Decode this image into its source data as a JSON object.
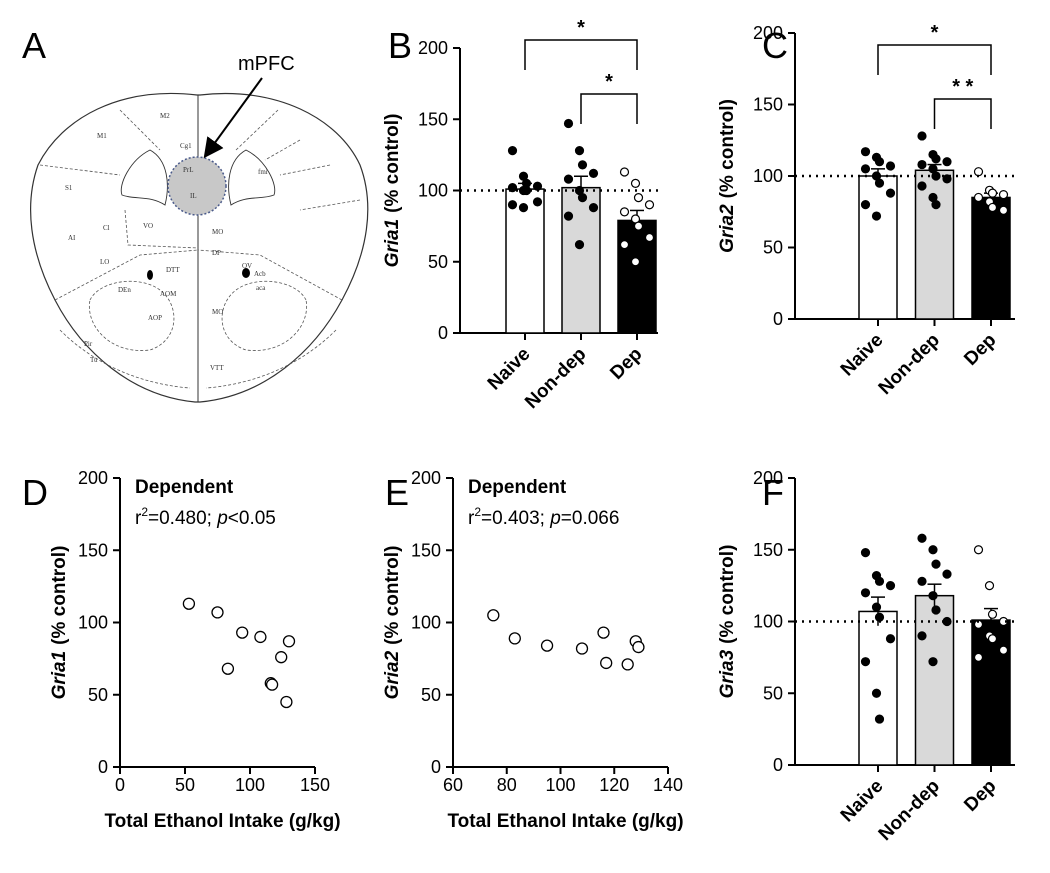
{
  "diagram": {
    "panel": "A",
    "label": "mPFC",
    "regions": [
      "M1",
      "M2",
      "Cg1",
      "PrL",
      "IL",
      "fmi",
      "S1",
      "Cl",
      "VO",
      "MO",
      "DP",
      "AI",
      "LO",
      "DTT",
      "OV",
      "AOM",
      "DEn",
      "Acb",
      "aca",
      "AOP",
      "Pir",
      "Tu",
      "VTT",
      "MO"
    ]
  },
  "chart_data": [
    {
      "panel": "B",
      "type": "bar",
      "ylabel_gene": "Gria1",
      "ylabel_unit": "(% control)",
      "categories": [
        "Naive",
        "Non-dep",
        "Dep"
      ],
      "values": [
        101,
        102,
        79
      ],
      "errors": [
        4,
        8,
        7
      ],
      "points": [
        [
          128,
          110,
          105,
          103,
          102,
          100,
          100,
          92,
          90,
          88
        ],
        [
          147,
          128,
          118,
          112,
          108,
          100,
          95,
          88,
          82,
          62
        ],
        [
          113,
          105,
          95,
          90,
          85,
          80,
          75,
          67,
          62,
          50
        ]
      ],
      "bar_colors": [
        "#ffffff",
        "#d9d9d9",
        "#000000"
      ],
      "point_colors": [
        "#000000",
        "#000000",
        "#ffffff"
      ],
      "ylim": [
        0,
        200
      ],
      "yticks": [
        0,
        50,
        100,
        150,
        200
      ],
      "reference_line": 100,
      "comparisons": [
        {
          "from": "Naive",
          "to": "Dep",
          "label": "*"
        },
        {
          "from": "Non-dep",
          "to": "Dep",
          "label": "*"
        }
      ]
    },
    {
      "panel": "C",
      "type": "bar",
      "ylabel_gene": "Gria2",
      "ylabel_unit": "(% control)",
      "categories": [
        "Naive",
        "Non-dep",
        "Dep"
      ],
      "values": [
        100,
        104,
        85
      ],
      "errors": [
        5,
        4,
        3
      ],
      "points": [
        [
          117,
          113,
          110,
          107,
          105,
          100,
          95,
          88,
          80,
          72
        ],
        [
          128,
          115,
          112,
          110,
          108,
          105,
          100,
          98,
          93,
          85,
          80
        ],
        [
          103,
          90,
          88,
          87,
          85,
          82,
          78,
          76
        ]
      ],
      "bar_colors": [
        "#ffffff",
        "#d9d9d9",
        "#000000"
      ],
      "point_colors": [
        "#000000",
        "#000000",
        "#ffffff"
      ],
      "ylim": [
        0,
        200
      ],
      "yticks": [
        0,
        50,
        100,
        150,
        200
      ],
      "reference_line": 100,
      "comparisons": [
        {
          "from": "Naive",
          "to": "Dep",
          "label": "*"
        },
        {
          "from": "Non-dep",
          "to": "Dep",
          "label": "* *"
        }
      ]
    },
    {
      "panel": "D",
      "type": "scatter",
      "title": "Dependent",
      "stat_parts": [
        "r",
        "2",
        "=0.480; ",
        "p",
        "<0.05"
      ],
      "xlabel": "Total Ethanol Intake (g/kg)",
      "ylabel_gene": "Gria1",
      "ylabel_unit": "(% control)",
      "x": [
        53,
        75,
        94,
        108,
        83,
        124,
        116,
        117,
        130,
        128
      ],
      "values": [
        113,
        107,
        93,
        90,
        68,
        76,
        58,
        57,
        87,
        45
      ],
      "xlim": [
        0,
        150
      ],
      "xticks": [
        0,
        50,
        100,
        150
      ],
      "ylim": [
        0,
        200
      ],
      "yticks": [
        0,
        50,
        100,
        150,
        200
      ],
      "marker_fill": "#ffffff"
    },
    {
      "panel": "E",
      "type": "scatter",
      "title": "Dependent",
      "stat_parts": [
        "r",
        "2",
        "=0.403; ",
        "p",
        "=0.066"
      ],
      "xlabel": "Total Ethanol Intake (g/kg)",
      "ylabel_gene": "Gria2",
      "ylabel_unit": "(% control)",
      "x": [
        75,
        83,
        95,
        108,
        116,
        117,
        125,
        128,
        129
      ],
      "values": [
        105,
        89,
        84,
        82,
        93,
        72,
        71,
        87,
        83
      ],
      "xlim": [
        60,
        140
      ],
      "xticks": [
        60,
        80,
        100,
        120,
        140
      ],
      "ylim": [
        0,
        200
      ],
      "yticks": [
        0,
        50,
        100,
        150,
        200
      ],
      "marker_fill": "#ffffff"
    },
    {
      "panel": "F",
      "type": "bar",
      "ylabel_gene": "Gria3",
      "ylabel_unit": "(% control)",
      "categories": [
        "Naive",
        "Non-dep",
        "Dep"
      ],
      "values": [
        107,
        118,
        101
      ],
      "errors": [
        10,
        8,
        8
      ],
      "points": [
        [
          148,
          132,
          128,
          125,
          120,
          110,
          103,
          88,
          72,
          50,
          32
        ],
        [
          158,
          150,
          140,
          133,
          128,
          118,
          108,
          100,
          90,
          72
        ],
        [
          150,
          125,
          105,
          100,
          98,
          90,
          88,
          80,
          75
        ]
      ],
      "bar_colors": [
        "#ffffff",
        "#d9d9d9",
        "#000000"
      ],
      "point_colors": [
        "#000000",
        "#000000",
        "#ffffff"
      ],
      "ylim": [
        0,
        200
      ],
      "yticks": [
        0,
        50,
        100,
        150,
        200
      ],
      "reference_line": 100,
      "comparisons": []
    }
  ]
}
